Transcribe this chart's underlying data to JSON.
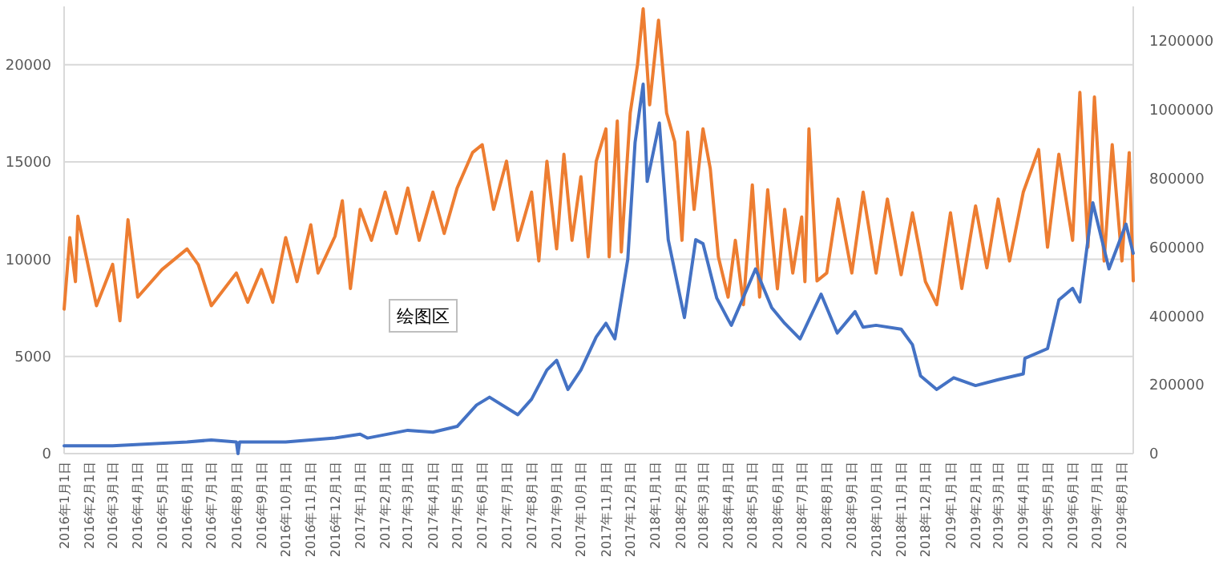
{
  "chart_data": {
    "type": "line",
    "annotations": [
      "绘图区"
    ],
    "grid": "y",
    "line_style": "solid",
    "xlim": [
      "2016-01-01",
      "2019-08-15"
    ],
    "xticks": [
      {
        "value": "2016-01-01",
        "label": "2016年1月1日"
      },
      {
        "value": "2016-02-01",
        "label": "2016年2月1日"
      },
      {
        "value": "2016-03-01",
        "label": "2016年3月1日"
      },
      {
        "value": "2016-04-01",
        "label": "2016年4月1日"
      },
      {
        "value": "2016-05-01",
        "label": "2016年5月1日"
      },
      {
        "value": "2016-06-01",
        "label": "2016年6月1日"
      },
      {
        "value": "2016-07-01",
        "label": "2016年7月1日"
      },
      {
        "value": "2016-08-01",
        "label": "2016年8月1日"
      },
      {
        "value": "2016-09-01",
        "label": "2016年9月1日"
      },
      {
        "value": "2016-10-01",
        "label": "2016年10月1日"
      },
      {
        "value": "2016-11-01",
        "label": "2016年11月1日"
      },
      {
        "value": "2016-12-01",
        "label": "2016年12月1日"
      },
      {
        "value": "2017-01-01",
        "label": "2017年1月1日"
      },
      {
        "value": "2017-02-01",
        "label": "2017年2月1日"
      },
      {
        "value": "2017-03-01",
        "label": "2017年3月1日"
      },
      {
        "value": "2017-04-01",
        "label": "2017年4月1日"
      },
      {
        "value": "2017-05-01",
        "label": "2017年5月1日"
      },
      {
        "value": "2017-06-01",
        "label": "2017年6月1日"
      },
      {
        "value": "2017-07-01",
        "label": "2017年7月1日"
      },
      {
        "value": "2017-08-01",
        "label": "2017年8月1日"
      },
      {
        "value": "2017-09-01",
        "label": "2017年9月1日"
      },
      {
        "value": "2017-10-01",
        "label": "2017年10月1日"
      },
      {
        "value": "2017-11-01",
        "label": "2017年11月1日"
      },
      {
        "value": "2017-12-01",
        "label": "2017年12月1日"
      },
      {
        "value": "2018-01-01",
        "label": "2018年1月1日"
      },
      {
        "value": "2018-02-01",
        "label": "2018年2月1日"
      },
      {
        "value": "2018-03-01",
        "label": "2018年3月1日"
      },
      {
        "value": "2018-04-01",
        "label": "2018年4月1日"
      },
      {
        "value": "2018-05-01",
        "label": "2018年5月1日"
      },
      {
        "value": "2018-06-01",
        "label": "2018年6月1日"
      },
      {
        "value": "2018-07-01",
        "label": "2018年7月1日"
      },
      {
        "value": "2018-08-01",
        "label": "2018年8月1日"
      },
      {
        "value": "2018-09-01",
        "label": "2018年9月1日"
      },
      {
        "value": "2018-10-01",
        "label": "2018年10月1日"
      },
      {
        "value": "2018-11-01",
        "label": "2018年11月1日"
      },
      {
        "value": "2018-12-01",
        "label": "2018年12月1日"
      },
      {
        "value": "2019-01-01",
        "label": "2019年1月1日"
      },
      {
        "value": "2019-02-01",
        "label": "2019年2月1日"
      },
      {
        "value": "2019-03-01",
        "label": "2019年3月1日"
      },
      {
        "value": "2019-04-01",
        "label": "2019年4月1日"
      },
      {
        "value": "2019-05-01",
        "label": "2019年5月1日"
      },
      {
        "value": "2019-06-01",
        "label": "2019年6月1日"
      },
      {
        "value": "2019-07-01",
        "label": "2019年7月1日"
      },
      {
        "value": "2019-08-01",
        "label": "2019年8月1日"
      }
    ],
    "ylim": [
      0,
      23000
    ],
    "yticks": [
      0,
      5000,
      10000,
      15000,
      20000
    ],
    "y2lim": [
      0,
      1300000
    ],
    "y2ticks": [
      0,
      200000,
      400000,
      600000,
      800000,
      1000000,
      1200000
    ],
    "series": [
      {
        "color": "#ed7d31",
        "axis": "y2",
        "x": [
          "2016-01-01",
          "2016-01-08",
          "2016-01-15",
          "2016-01-18",
          "2016-02-10",
          "2016-03-01",
          "2016-03-10",
          "2016-03-20",
          "2016-04-01",
          "2016-05-01",
          "2016-06-01",
          "2016-06-15",
          "2016-07-01",
          "2016-08-01",
          "2016-08-15",
          "2016-09-01",
          "2016-09-15",
          "2016-10-01",
          "2016-10-15",
          "2016-11-01",
          "2016-11-10",
          "2016-12-01",
          "2016-12-10",
          "2016-12-20",
          "2017-01-01",
          "2017-01-15",
          "2017-02-01",
          "2017-02-15",
          "2017-03-01",
          "2017-03-15",
          "2017-04-01",
          "2017-04-15",
          "2017-05-01",
          "2017-05-20",
          "2017-06-01",
          "2017-06-15",
          "2017-07-01",
          "2017-07-15",
          "2017-08-01",
          "2017-08-10",
          "2017-08-20",
          "2017-09-01",
          "2017-09-10",
          "2017-09-20",
          "2017-10-01",
          "2017-10-10",
          "2017-10-20",
          "2017-11-01",
          "2017-11-05",
          "2017-11-15",
          "2017-11-20",
          "2017-12-01",
          "2017-12-10",
          "2017-12-17",
          "2017-12-25",
          "2018-01-05",
          "2018-01-15",
          "2018-01-25",
          "2018-02-03",
          "2018-02-10",
          "2018-02-18",
          "2018-03-01",
          "2018-03-10",
          "2018-03-20",
          "2018-04-01",
          "2018-04-10",
          "2018-04-20",
          "2018-05-01",
          "2018-05-10",
          "2018-05-20",
          "2018-06-01",
          "2018-06-10",
          "2018-06-20",
          "2018-07-01",
          "2018-07-05",
          "2018-07-10",
          "2018-07-20",
          "2018-08-01",
          "2018-08-15",
          "2018-09-01",
          "2018-09-15",
          "2018-10-01",
          "2018-10-15",
          "2018-11-01",
          "2018-11-15",
          "2018-12-01",
          "2018-12-15",
          "2019-01-01",
          "2019-01-15",
          "2019-02-01",
          "2019-02-15",
          "2019-03-01",
          "2019-03-15",
          "2019-04-01",
          "2019-04-20",
          "2019-05-01",
          "2019-05-15",
          "2019-06-01",
          "2019-06-10",
          "2019-06-20",
          "2019-06-28",
          "2019-07-10",
          "2019-07-20",
          "2019-08-01",
          "2019-08-10",
          "2019-08-15"
        ],
        "values": [
          420000,
          628000,
          500000,
          690000,
          430000,
          550000,
          386000,
          680000,
          455000,
          535000,
          595000,
          549000,
          430000,
          525000,
          440000,
          535000,
          440000,
          628000,
          500000,
          665000,
          525000,
          632000,
          735000,
          480000,
          710000,
          620000,
          760000,
          640000,
          772000,
          620000,
          760000,
          640000,
          772000,
          875000,
          898000,
          710000,
          850000,
          620000,
          760000,
          560000,
          850000,
          595000,
          870000,
          620000,
          805000,
          572000,
          850000,
          944000,
          572000,
          967000,
          586000,
          990000,
          1130000,
          1293000,
          1014000,
          1260000,
          990000,
          907000,
          620000,
          935000,
          710000,
          944000,
          828000,
          572000,
          455000,
          620000,
          433000,
          781000,
          455000,
          767000,
          479000,
          710000,
          525000,
          688000,
          500000,
          944000,
          502000,
          525000,
          740000,
          525000,
          760000,
          525000,
          740000,
          520000,
          700000,
          500000,
          433000,
          700000,
          480000,
          720000,
          540000,
          740000,
          560000,
          760000,
          884000,
          600000,
          870000,
          620000,
          1050000,
          600000,
          1037000,
          560000,
          898000,
          560000,
          875000,
          502000
        ]
      },
      {
        "color": "#4472c4",
        "x": [
          "2016-01-01",
          "2016-03-01",
          "2016-06-01",
          "2016-07-01",
          "2016-08-01",
          "2016-08-03",
          "2016-08-05",
          "2016-10-01",
          "2016-12-01",
          "2017-01-01",
          "2017-01-10",
          "2017-03-01",
          "2017-04-01",
          "2017-05-01",
          "2017-05-25",
          "2017-06-10",
          "2017-07-15",
          "2017-08-01",
          "2017-08-20",
          "2017-09-01",
          "2017-09-15",
          "2017-10-01",
          "2017-10-20",
          "2017-11-01",
          "2017-11-12",
          "2017-11-28",
          "2017-12-07",
          "2017-12-17",
          "2017-12-22",
          "2018-01-06",
          "2018-01-17",
          "2018-02-06",
          "2018-02-20",
          "2018-03-01",
          "2018-03-18",
          "2018-04-01",
          "2018-04-05",
          "2018-05-05",
          "2018-05-25",
          "2018-06-10",
          "2018-06-29",
          "2018-07-25",
          "2018-08-14",
          "2018-09-05",
          "2018-09-15",
          "2018-10-01",
          "2018-11-01",
          "2018-11-15",
          "2018-11-25",
          "2018-12-15",
          "2019-01-05",
          "2019-02-01",
          "2019-03-01",
          "2019-04-01",
          "2019-04-03",
          "2019-05-01",
          "2019-05-15",
          "2019-06-01",
          "2019-06-10",
          "2019-06-26",
          "2019-07-16",
          "2019-08-06",
          "2019-08-15"
        ],
        "values": [
          400,
          400,
          600,
          700,
          600,
          0,
          600,
          600,
          800,
          1000,
          800,
          1200,
          1100,
          1400,
          2500,
          2900,
          2000,
          2800,
          4300,
          4800,
          3300,
          4300,
          6000,
          6700,
          5900,
          10000,
          16000,
          19000,
          14000,
          17000,
          11000,
          7000,
          11000,
          10800,
          8000,
          6900,
          6600,
          9500,
          7500,
          6700,
          5900,
          8200,
          6200,
          7300,
          6500,
          6600,
          6400,
          5600,
          4000,
          3300,
          3900,
          3500,
          3800,
          4100,
          4900,
          5400,
          7900,
          8500,
          7800,
          12900,
          9500,
          11800,
          10300
        ]
      }
    ]
  }
}
